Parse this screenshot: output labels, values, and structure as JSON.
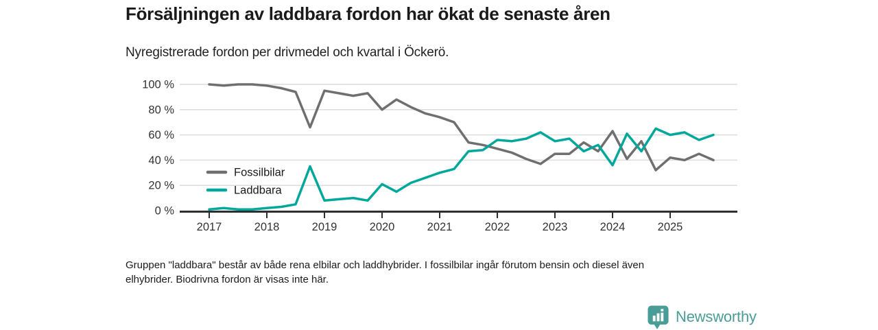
{
  "header": {
    "title": "Försäljningen av laddbara fordon har ökat de senaste åren",
    "subtitle": "Nyregistrerade fordon per drivmedel och kvartal i Öckerö."
  },
  "footnote": {
    "lines": [
      "Gruppen \"laddbara\" består av både rena elbilar och laddhybrider. I fossilbilar ingår förutom bensin och diesel även",
      "elhybrider. Biodrivna fordon är visas inte här."
    ]
  },
  "brand": {
    "name": "Newsworthy",
    "color": "#4a9d97"
  },
  "colors": {
    "fossil_line": "#6f6f6f",
    "laddbara_line": "#00a79b",
    "gridline": "#dcdcdc",
    "axis": "#2e2e2e",
    "tick_label": "#333333",
    "legend_label": "#1a1a1a"
  },
  "chart_data": {
    "type": "line",
    "title": "Nyregistrerade fordon per drivmedel och kvartal i Öckerö",
    "x_unit": "quarter",
    "x_start": "2017-Q1",
    "x_end": "2025-Q4",
    "year_ticks": [
      "2017",
      "2018",
      "2019",
      "2020",
      "2021",
      "2022",
      "2023",
      "2024",
      "2025"
    ],
    "yticks": [
      0,
      20,
      40,
      60,
      80,
      100
    ],
    "ytick_suffix": " %",
    "ylim": [
      0,
      100
    ],
    "grid": true,
    "legend_position": "inside-left",
    "series": [
      {
        "name": "Fossilbilar",
        "color": "#6f6f6f",
        "values": [
          100,
          99,
          100,
          100,
          99,
          97,
          94,
          66,
          95,
          93,
          91,
          93,
          80,
          88,
          82,
          77,
          74,
          70,
          54,
          52,
          49,
          46,
          41,
          37,
          45,
          45,
          54,
          47,
          63,
          41,
          55,
          32,
          42,
          40,
          45,
          40
        ]
      },
      {
        "name": "Laddbara",
        "color": "#00a79b",
        "values": [
          1,
          2,
          1,
          1,
          2,
          3,
          5,
          35,
          8,
          9,
          10,
          8,
          21,
          15,
          22,
          26,
          30,
          33,
          47,
          48,
          56,
          55,
          57,
          62,
          55,
          57,
          47,
          52,
          36,
          61,
          47,
          65,
          60,
          62,
          56,
          60
        ]
      }
    ]
  }
}
